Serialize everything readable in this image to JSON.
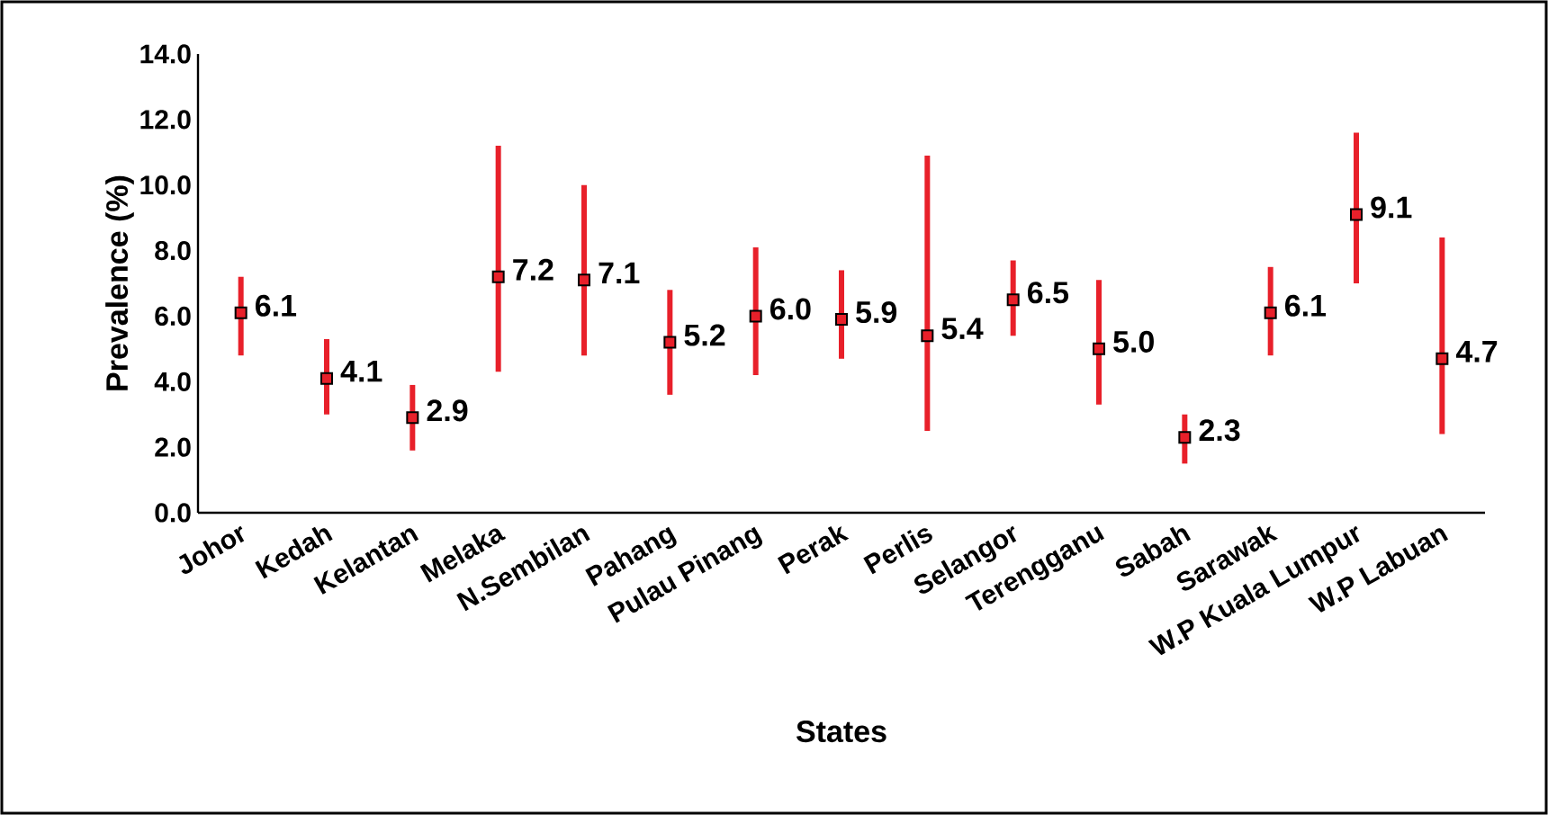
{
  "chart_data": {
    "type": "scatter",
    "xlabel": "States",
    "ylabel": "Prevalence (%)",
    "categories": [
      "Johor",
      "Kedah",
      "Kelantan",
      "Melaka",
      "N.Sembilan",
      "Pahang",
      "Pulau Pinang",
      "Perak",
      "Perlis",
      "Selangor",
      "Terengganu",
      "Sabah",
      "Sarawak",
      "W.P Kuala Lumpur",
      "W.P Labuan"
    ],
    "values": [
      6.1,
      4.1,
      2.9,
      7.2,
      7.1,
      5.2,
      6.0,
      5.9,
      5.4,
      6.5,
      5.0,
      2.3,
      6.1,
      9.1,
      4.7
    ],
    "errors": [
      [
        4.8,
        7.2
      ],
      [
        3.0,
        5.3
      ],
      [
        1.9,
        3.9
      ],
      [
        4.3,
        11.2
      ],
      [
        4.8,
        10.0
      ],
      [
        3.6,
        6.8
      ],
      [
        4.2,
        8.1
      ],
      [
        4.7,
        7.4
      ],
      [
        2.5,
        10.9
      ],
      [
        5.4,
        7.7
      ],
      [
        3.3,
        7.1
      ],
      [
        1.5,
        3.0
      ],
      [
        4.8,
        7.5
      ],
      [
        7.0,
        11.6
      ],
      [
        2.4,
        8.4
      ]
    ],
    "value_labels": [
      "6.1",
      "4.1",
      "2.9",
      "7.2",
      "7.1",
      "5.2",
      "6.0",
      "5.9",
      "5.4",
      "6.5",
      "5.0",
      "2.3",
      "6.1",
      "9.1",
      "4.7"
    ],
    "color": "#e8202a",
    "marker": "square",
    "grid": false,
    "ylim": [
      0,
      14
    ],
    "yticks": [
      {
        "value": 0,
        "label": "0.0"
      },
      {
        "value": 2,
        "label": "2.0"
      },
      {
        "value": 4,
        "label": "4.0"
      },
      {
        "value": 6,
        "label": "6.0"
      },
      {
        "value": 8,
        "label": "8.0"
      },
      {
        "value": 10,
        "label": "10.0"
      },
      {
        "value": 12,
        "label": "12.0"
      },
      {
        "value": 14,
        "label": "14.0"
      }
    ]
  }
}
